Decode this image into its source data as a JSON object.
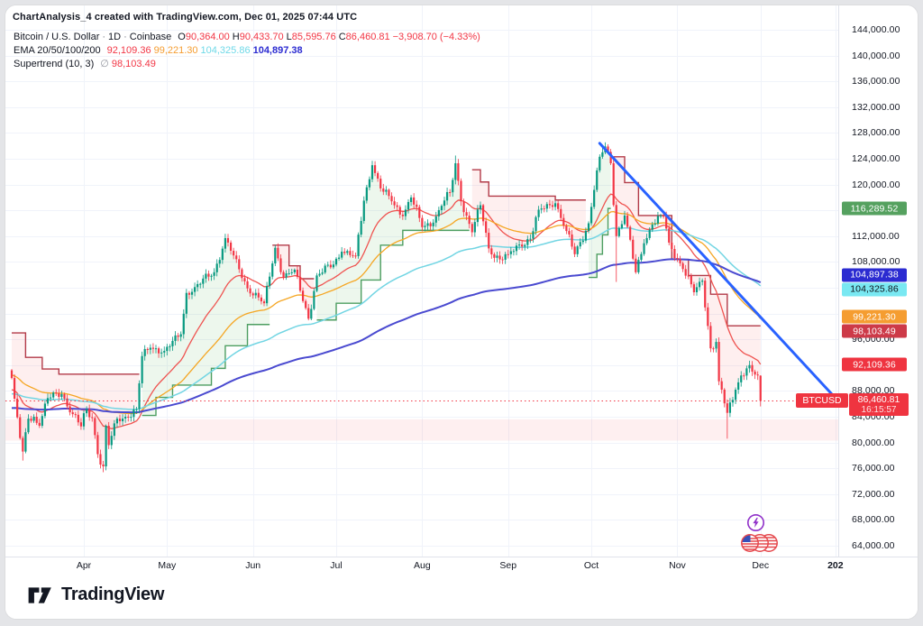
{
  "header": {
    "title": "ChartAnalysis_4 created with TradingView.com, Dec 01, 2025 07:44 UTC"
  },
  "legend": {
    "symbol": "Bitcoin / U.S. Dollar",
    "separator": "·",
    "interval": "1D",
    "exchange": "Coinbase",
    "o_label": "O",
    "o_value": "90,364.00",
    "h_label": "H",
    "h_value": "90,433.70",
    "l_label": "L",
    "l_value": "85,595.76",
    "c_label": "C",
    "c_value": "86,460.81",
    "change": "−3,908.70 (−4.33%)",
    "ema_label": "EMA 20/50/100/200",
    "ema20": "92,109.36",
    "ema50": "99,221.30",
    "ema100": "104,325.86",
    "ema200": "104,897.38",
    "supertrend_label": "Supertrend (10, 3)",
    "empty_symbol": "∅",
    "supertrend_value": "98,103.49"
  },
  "price_axis": {
    "tick_labels": [
      "144,000.00",
      "140,000.00",
      "136,000.00",
      "132,000.00",
      "128,000.00",
      "124,000.00",
      "120,000.00",
      "116,000.00",
      "112,000.00",
      "108,000.00",
      "104,000.00",
      "100,000.00",
      "96,000.00",
      "92,000.00",
      "88,000.00",
      "84,000.00",
      "80,000.00",
      "76,000.00",
      "72,000.00",
      "68,000.00",
      "64,000.00"
    ],
    "badges": [
      {
        "text": "116,289.52",
        "price": 116.28952,
        "bg": "#55a15f",
        "fg": "#ffffff",
        "nudge": 0
      },
      {
        "text": "104,897.38",
        "price": 104.89738,
        "bg": "#2b2bd1",
        "fg": "#ffffff",
        "nudge": -8
      },
      {
        "text": "104,325.86",
        "price": 104.32586,
        "bg": "#79e8f2",
        "fg": "#10131a",
        "nudge": 4
      },
      {
        "text": "99,221.30",
        "price": 99.2213,
        "bg": "#f59d31",
        "fg": "#ffffff",
        "nudge": -2
      },
      {
        "text": "98,103.49",
        "price": 98.10349,
        "bg": "#cd3a48",
        "fg": "#ffffff",
        "nudge": 6
      },
      {
        "text": "92,109.36",
        "price": 92.10936,
        "bg": "#ef3440",
        "fg": "#ffffff",
        "nudge": 0
      }
    ],
    "price_badge": {
      "symbol": "BTCUSD",
      "value": "86,460.81",
      "countdown": "16:15:57",
      "price": 86.46081
    }
  },
  "time_axis": {
    "months": [
      {
        "label": "Apr",
        "day": 26
      },
      {
        "label": "May",
        "day": 56
      },
      {
        "label": "Jun",
        "day": 87
      },
      {
        "label": "Jul",
        "day": 117
      },
      {
        "label": "Aug",
        "day": 148
      },
      {
        "label": "Sep",
        "day": 179
      },
      {
        "label": "Oct",
        "day": 209
      },
      {
        "label": "Nov",
        "day": 240
      },
      {
        "label": "Dec",
        "day": 270
      }
    ],
    "year_label": {
      "label": "202",
      "day": 297
    }
  },
  "footer": {
    "brand": "TradingView"
  },
  "chart_data": {
    "type": "candlestick",
    "title": "Bitcoin / U.S. Dollar, 1D, Coinbase with EMA 20/50/100/200 and Supertrend (10,3)",
    "units": "thousand USD",
    "ylim": [
      64,
      144
    ],
    "y_tick_step": 4,
    "grid": true,
    "days": 271,
    "day0_date": "2025-03-06",
    "close_waypoints": [
      [
        0,
        90.0
      ],
      [
        1,
        86.8
      ],
      [
        3,
        80.7
      ],
      [
        4,
        78.6
      ],
      [
        6,
        83.7
      ],
      [
        8,
        84.0
      ],
      [
        10,
        82.6
      ],
      [
        13,
        86.9
      ],
      [
        18,
        87.5
      ],
      [
        22,
        84.4
      ],
      [
        25,
        82.5
      ],
      [
        27,
        85.2
      ],
      [
        29,
        83.8
      ],
      [
        31,
        78.2
      ],
      [
        33,
        76.3
      ],
      [
        34,
        82.6
      ],
      [
        35,
        79.6
      ],
      [
        38,
        83.7
      ],
      [
        41,
        84.0
      ],
      [
        45,
        85.2
      ],
      [
        47,
        93.4
      ],
      [
        50,
        94.7
      ],
      [
        55,
        94.2
      ],
      [
        61,
        96.8
      ],
      [
        63,
        103.2
      ],
      [
        66,
        104.1
      ],
      [
        73,
        106.4
      ],
      [
        77,
        111.7
      ],
      [
        80,
        109.0
      ],
      [
        85,
        103.9
      ],
      [
        91,
        101.6
      ],
      [
        95,
        110.2
      ],
      [
        98,
        105.6
      ],
      [
        102,
        106.8
      ],
      [
        107,
        99.2
      ],
      [
        110,
        105.9
      ],
      [
        116,
        107.6
      ],
      [
        119,
        109.6
      ],
      [
        124,
        108.9
      ],
      [
        127,
        117.5
      ],
      [
        130,
        123.0
      ],
      [
        133,
        119.4
      ],
      [
        137,
        117.4
      ],
      [
        141,
        115.1
      ],
      [
        144,
        118.0
      ],
      [
        148,
        113.4
      ],
      [
        152,
        114.1
      ],
      [
        155,
        116.7
      ],
      [
        158,
        118.8
      ],
      [
        160,
        123.3
      ],
      [
        162,
        117.4
      ],
      [
        166,
        112.6
      ],
      [
        169,
        116.8
      ],
      [
        172,
        110.1
      ],
      [
        176,
        108.4
      ],
      [
        179,
        109.2
      ],
      [
        183,
        110.7
      ],
      [
        187,
        111.6
      ],
      [
        190,
        116.1
      ],
      [
        196,
        117.1
      ],
      [
        200,
        112.8
      ],
      [
        203,
        109.2
      ],
      [
        208,
        114.0
      ],
      [
        211,
        122.2
      ],
      [
        213,
        125.0
      ],
      [
        214,
        125.9
      ],
      [
        216,
        123.3
      ],
      [
        218,
        112.0
      ],
      [
        221,
        115.2
      ],
      [
        225,
        106.4
      ],
      [
        228,
        110.9
      ],
      [
        231,
        113.8
      ],
      [
        235,
        115.1
      ],
      [
        237,
        111.0
      ],
      [
        242,
        106.9
      ],
      [
        246,
        103.3
      ],
      [
        249,
        105.1
      ],
      [
        252,
        94.6
      ],
      [
        254,
        95.6
      ],
      [
        255,
        89.5
      ],
      [
        258,
        84.6
      ],
      [
        261,
        88.2
      ],
      [
        263,
        90.4
      ],
      [
        265,
        91.5
      ],
      [
        267,
        91.0
      ],
      [
        269,
        90.4
      ],
      [
        270,
        86.461
      ]
    ],
    "noise_amp": [
      0.5,
      0.35
    ],
    "wick_low_overrides": {
      "4": 77.2,
      "33": 75.4,
      "218": 104.9,
      "258": 80.6
    },
    "wick_high_overrides": {
      "77": 112.0,
      "130": 123.3,
      "160": 124.5,
      "214": 126.3
    },
    "last_candle_ohlc": [
      90.364,
      90.4337,
      85.59576,
      86.46081
    ],
    "candle_up_color": "#089981",
    "candle_down_color": "#f23645",
    "emas": [
      {
        "period": 20,
        "seed": 88.0,
        "color": "#ef5350",
        "width": 1.3
      },
      {
        "period": 50,
        "seed": 90.5,
        "color": "#f5a623",
        "width": 1.3
      },
      {
        "period": 100,
        "seed": 87.5,
        "color": "#72d5e3",
        "width": 1.5
      },
      {
        "period": 200,
        "seed": 85.3,
        "color": "#4a4ad0",
        "width": 2.0
      }
    ],
    "supertrend": {
      "up_line_color": "#4d9e61",
      "down_line_color": "#b23a48",
      "up_fill": "rgba(76,175,80,0.10)",
      "down_fill": "rgba(239,83,80,0.09)",
      "segments": [
        {
          "dir": "down",
          "end": 47,
          "steps": [
            [
              0,
              97.0
            ],
            [
              5,
              93.2
            ],
            [
              11,
              91.4
            ],
            [
              17,
              90.6
            ]
          ]
        },
        {
          "dir": "up",
          "end": 94,
          "steps": [
            [
              47,
              84.2
            ],
            [
              52,
              87.0
            ],
            [
              58,
              88.9
            ],
            [
              72,
              91.5
            ],
            [
              77,
              95.0
            ],
            [
              85,
              98.3
            ]
          ]
        },
        {
          "dir": "down",
          "end": 110,
          "steps": [
            [
              94,
              110.6
            ],
            [
              100,
              107.4
            ],
            [
              104,
              105.4
            ]
          ]
        },
        {
          "dir": "up",
          "end": 166,
          "steps": [
            [
              110,
              99.0
            ],
            [
              117,
              101.6
            ],
            [
              126,
              105.2
            ],
            [
              133,
              110.6
            ],
            [
              141,
              112.9
            ]
          ]
        },
        {
          "dir": "down",
          "end": 208,
          "steps": [
            [
              166,
              122.3
            ],
            [
              169,
              120.4
            ],
            [
              172,
              118.2
            ],
            [
              196,
              117.6
            ]
          ]
        },
        {
          "dir": "up",
          "end": 217,
          "steps": [
            [
              208,
              105.6
            ],
            [
              211,
              109.2
            ],
            [
              213,
              112.2
            ],
            [
              215,
              116.2895
            ]
          ]
        },
        {
          "dir": "down",
          "end": 271,
          "steps": [
            [
              217,
              124.3
            ],
            [
              221,
              120.3
            ],
            [
              226,
              115.2
            ],
            [
              238,
              108.4
            ],
            [
              244,
              105.9
            ],
            [
              252,
              103.0
            ],
            [
              258,
              98.1035
            ]
          ]
        }
      ]
    },
    "trendline": {
      "from_day": 212,
      "from_price": 126.4,
      "to_day": 297,
      "to_price": 86.9,
      "color": "#2962ff",
      "width": 3
    },
    "price_line": {
      "price": 86.46081,
      "color": "#f23645"
    },
    "support_zone": {
      "top": 83.6,
      "bottom": 80.3,
      "fill": "rgba(242,54,69,0.08)"
    },
    "grid_color": "#f0f3fa"
  },
  "colors": {
    "accent_red": "#f23645",
    "accent_green": "#089981",
    "trendline_blue": "#2962ff",
    "text_dark": "#131722",
    "text_grey": "#9598a1",
    "axis_border": "#e0e3eb"
  }
}
